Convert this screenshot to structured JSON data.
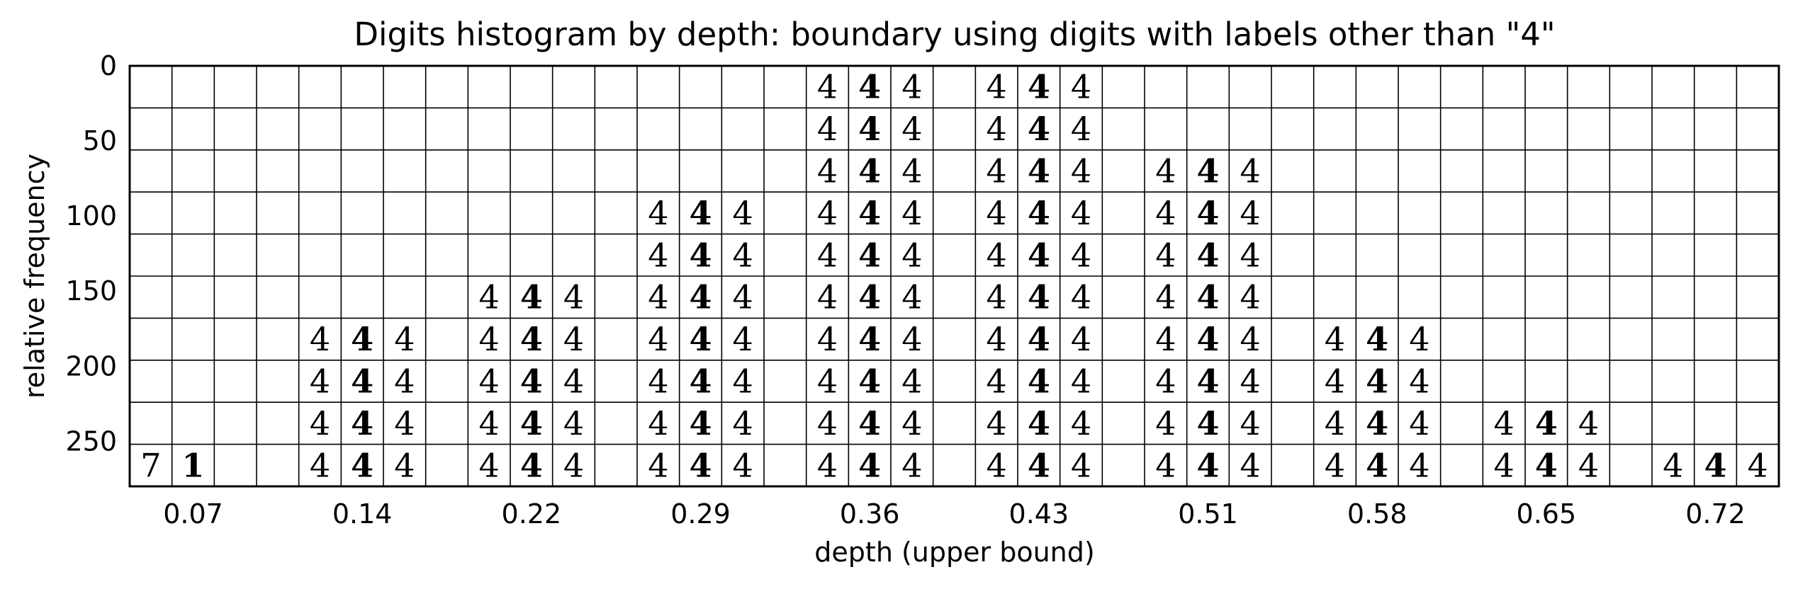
{
  "chart_data": {
    "type": "histogram-grid",
    "title": "Digits histogram by depth: boundary using digits with labels other than \"4\"",
    "xlabel": "depth (upper bound)",
    "ylabel": "relative frequency",
    "x_tick_labels": [
      "0.07",
      "0.14",
      "0.22",
      "0.29",
      "0.36",
      "0.43",
      "0.51",
      "0.58",
      "0.65",
      "0.72"
    ],
    "y_tick_labels": [
      "0",
      "50",
      "100",
      "150",
      "200",
      "250"
    ],
    "y_ticks": [
      0,
      50,
      100,
      150,
      200,
      250
    ],
    "ylim": [
      0,
      280
    ],
    "y_inverted": true,
    "grid": true,
    "cells_per_bin": 3,
    "rows": 10,
    "bins": [
      {
        "x_label": "0.07",
        "count": 2,
        "glyphs": [
          "7",
          "1"
        ]
      },
      {
        "x_label": "0.14",
        "count": 12,
        "glyphs": [
          "4",
          "4",
          "4",
          "4",
          "4",
          "4",
          "4",
          "4",
          "4",
          "4",
          "4",
          "4"
        ]
      },
      {
        "x_label": "0.22",
        "count": 15,
        "glyphs": [
          "4",
          "4",
          "4",
          "4",
          "4",
          "4",
          "4",
          "4",
          "4",
          "4",
          "4",
          "4",
          "4",
          "4",
          "4"
        ]
      },
      {
        "x_label": "0.29",
        "count": 21,
        "glyphs": [
          "4",
          "4",
          "4",
          "4",
          "4",
          "4",
          "4",
          "4",
          "4",
          "4",
          "4",
          "4",
          "4",
          "4",
          "4",
          "4",
          "4",
          "4",
          "4",
          "4",
          "4"
        ]
      },
      {
        "x_label": "0.36",
        "count": 30,
        "glyphs": [
          "4",
          "4",
          "4",
          "4",
          "4",
          "4",
          "4",
          "4",
          "4",
          "4",
          "4",
          "4",
          "4",
          "4",
          "4",
          "4",
          "4",
          "4",
          "4",
          "4",
          "4",
          "4",
          "4",
          "4",
          "4",
          "4",
          "4",
          "4",
          "4",
          "4"
        ]
      },
      {
        "x_label": "0.43",
        "count": 30,
        "glyphs": [
          "4",
          "4",
          "4",
          "4",
          "4",
          "4",
          "4",
          "4",
          "4",
          "4",
          "4",
          "4",
          "4",
          "4",
          "4",
          "4",
          "4",
          "4",
          "4",
          "4",
          "4",
          "4",
          "4",
          "4",
          "4",
          "4",
          "4",
          "4",
          "4",
          "4"
        ]
      },
      {
        "x_label": "0.51",
        "count": 24,
        "glyphs": [
          "4",
          "4",
          "4",
          "4",
          "4",
          "4",
          "4",
          "4",
          "4",
          "4",
          "4",
          "4",
          "4",
          "4",
          "4",
          "4",
          "4",
          "4",
          "4",
          "4",
          "4",
          "4",
          "4",
          "4"
        ]
      },
      {
        "x_label": "0.58",
        "count": 12,
        "glyphs": [
          "4",
          "4",
          "4",
          "4",
          "4",
          "4",
          "4",
          "4",
          "4",
          "4",
          "4",
          "4"
        ]
      },
      {
        "x_label": "0.65",
        "count": 6,
        "glyphs": [
          "4",
          "4",
          "4",
          "4",
          "4",
          "4"
        ]
      },
      {
        "x_label": "0.72",
        "count": 3,
        "glyphs": [
          "4",
          "4",
          "4"
        ]
      }
    ]
  }
}
